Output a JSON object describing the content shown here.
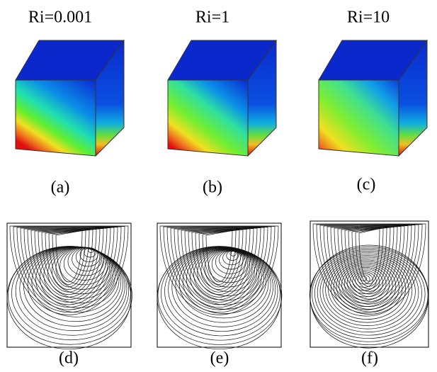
{
  "panels": {
    "titles": [
      "Ri=0.001",
      "Ri=1",
      "Ri=10"
    ],
    "top_labels": [
      "(a)",
      "(b)",
      "(c)"
    ],
    "bottom_labels": [
      "(d)",
      "(e)",
      "(f)"
    ]
  }
}
